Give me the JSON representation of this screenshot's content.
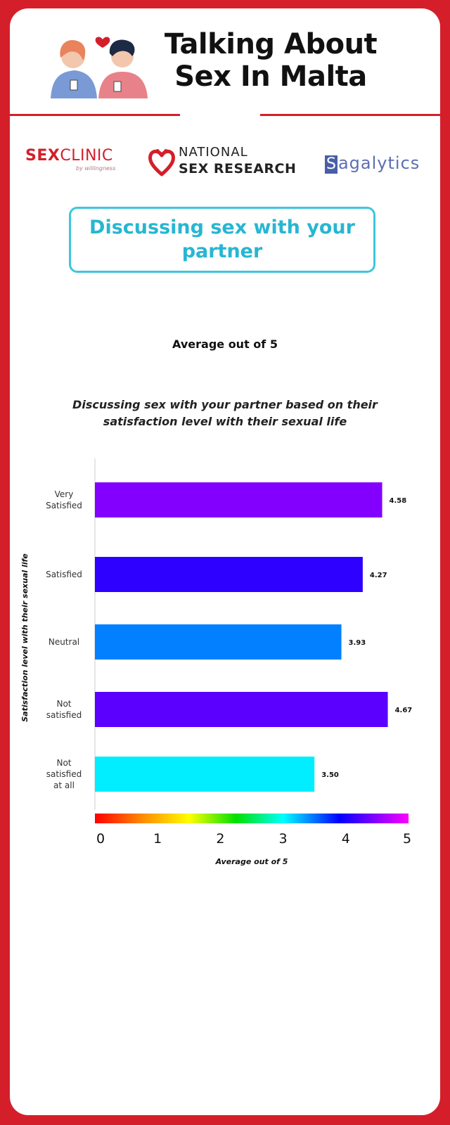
{
  "header": {
    "title_line1": "Talking About",
    "title_line2": "Sex In Malta"
  },
  "logos": {
    "sexclinic_bold": "SEX",
    "sexclinic_rest": "CLINIC",
    "sexclinic_by": "by willingness",
    "nsr_line1": "NATIONAL",
    "nsr_line2": "SEX RESEARCH",
    "sagalytics_cap": "S",
    "sagalytics_rest": "agalytics"
  },
  "section": {
    "title": "Discussing sex with your partner"
  },
  "subtitle": "Average out of 5",
  "colors": {
    "accent_red": "#d41f2a",
    "section_cyan": "#3ec6de"
  },
  "chart_data": {
    "type": "bar",
    "orientation": "horizontal",
    "title": "Discussing sex with your partner based on their satisfaction level with their sexual life",
    "xlabel": "Average out of 5",
    "ylabel": "Satisfaction level with their sexual life",
    "xlim": [
      0,
      5
    ],
    "x_ticks": [
      0,
      1,
      2,
      3,
      4,
      5
    ],
    "color_scale": "rainbow",
    "categories": [
      {
        "label_lines": [
          "Very",
          "Satisfied"
        ],
        "value": 4.58,
        "value_label": "4.58",
        "color": "#8300ff"
      },
      {
        "label_lines": [
          "Satisfied"
        ],
        "value": 4.27,
        "value_label": "4.27",
        "color": "#2d00ff"
      },
      {
        "label_lines": [
          "Neutral"
        ],
        "value": 3.93,
        "value_label": "3.93",
        "color": "#0380ff"
      },
      {
        "label_lines": [
          "Not",
          "satisfied"
        ],
        "value": 4.67,
        "value_label": "4.67",
        "color": "#5b00ff"
      },
      {
        "label_lines": [
          "Not",
          "satisfied",
          "at all"
        ],
        "value": 3.5,
        "value_label": "3.50",
        "color": "#00eeff"
      }
    ]
  }
}
